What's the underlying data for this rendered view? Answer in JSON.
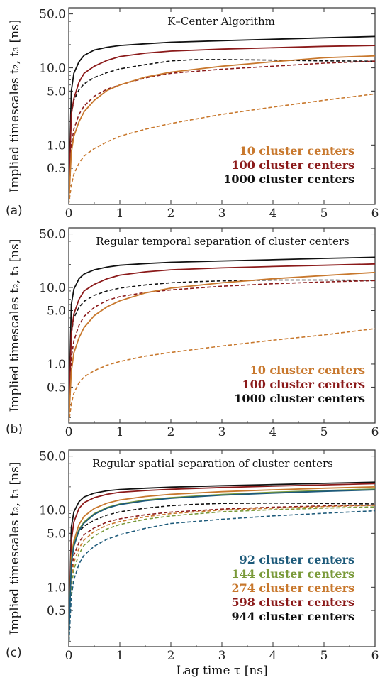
{
  "chart_data": [
    {
      "type": "line",
      "panel_letter": "(a)",
      "title": "K–Center Algorithm",
      "ylabel": "Implied timescales t₂, t₃ [ns]",
      "xlabel": "",
      "xlim": [
        0,
        6
      ],
      "ylim": [
        0.17,
        60
      ],
      "yscale": "log",
      "xticks": [
        0,
        1,
        2,
        3,
        4,
        5,
        6
      ],
      "yticks": [
        {
          "v": 50,
          "label": "50.0"
        },
        {
          "v": 10,
          "label": "10.0"
        },
        {
          "v": 5,
          "label": "5.0"
        },
        {
          "v": 1,
          "label": "1.0"
        },
        {
          "v": 0.5,
          "label": "0.5"
        }
      ],
      "legend_position": "bottom-right",
      "legend": [
        {
          "label": "10 cluster centers",
          "color": "#c8782d"
        },
        {
          "label": "100 cluster centers",
          "color": "#8b1a1a"
        },
        {
          "label": "1000 cluster centers",
          "color": "#111111"
        }
      ],
      "series": [
        {
          "color": "#111111",
          "style": "solid",
          "x": [
            0,
            0.05,
            0.1,
            0.2,
            0.3,
            0.5,
            0.75,
            1,
            1.5,
            2,
            3,
            4,
            5,
            6
          ],
          "y": [
            0.2,
            5,
            8.5,
            12,
            14.5,
            17,
            18.5,
            19.5,
            20.5,
            21.5,
            22.5,
            23.5,
            24.5,
            25.5
          ]
        },
        {
          "color": "#111111",
          "style": "dashed",
          "x": [
            0,
            0.05,
            0.1,
            0.2,
            0.3,
            0.5,
            0.75,
            1,
            1.5,
            2,
            2.5,
            3,
            4,
            5,
            6
          ],
          "y": [
            0.2,
            2.5,
            3.8,
            5.2,
            6.2,
            7.5,
            8.7,
            9.7,
            11,
            12.3,
            12.8,
            12.8,
            12.6,
            12.3,
            12.2
          ]
        },
        {
          "color": "#8b1a1a",
          "style": "solid",
          "x": [
            0,
            0.05,
            0.1,
            0.2,
            0.3,
            0.5,
            0.75,
            1,
            1.5,
            2,
            3,
            4,
            5,
            6
          ],
          "y": [
            0.2,
            2.5,
            4,
            6.5,
            8.5,
            10.5,
            12.5,
            14,
            15.5,
            16.5,
            17.5,
            18.2,
            19,
            19.5
          ]
        },
        {
          "color": "#8b1a1a",
          "style": "dashed",
          "x": [
            0,
            0.05,
            0.1,
            0.2,
            0.3,
            0.5,
            0.75,
            1,
            1.5,
            2,
            3,
            4,
            5,
            6
          ],
          "y": [
            0.17,
            1,
            1.6,
            2.5,
            3.2,
            4.3,
            5.3,
            6,
            7.4,
            8.5,
            9.6,
            10.5,
            11.5,
            12.2
          ]
        },
        {
          "color": "#c8782d",
          "style": "solid",
          "x": [
            0,
            0.05,
            0.1,
            0.2,
            0.3,
            0.5,
            0.75,
            1,
            1.5,
            2,
            3,
            4,
            5,
            6
          ],
          "y": [
            0.17,
            0.8,
            1.3,
            2,
            2.7,
            3.8,
            5.1,
            6,
            7.6,
            8.8,
            10.5,
            12,
            13.5,
            14.3
          ]
        },
        {
          "color": "#c8782d",
          "style": "dashed",
          "x": [
            0,
            0.05,
            0.1,
            0.2,
            0.3,
            0.5,
            0.75,
            1,
            1.5,
            2,
            3,
            4,
            5,
            6
          ],
          "y": [
            0.17,
            0.3,
            0.42,
            0.58,
            0.72,
            0.9,
            1.1,
            1.3,
            1.6,
            1.9,
            2.5,
            3.1,
            3.8,
            4.6
          ]
        }
      ]
    },
    {
      "type": "line",
      "panel_letter": "(b)",
      "title": "Regular temporal separation of cluster centers",
      "ylabel": "Implied timescales t₂, t₃ [ns]",
      "xlabel": "",
      "xlim": [
        0,
        6
      ],
      "ylim": [
        0.17,
        60
      ],
      "yscale": "log",
      "xticks": [
        0,
        1,
        2,
        3,
        4,
        5,
        6
      ],
      "yticks": [
        {
          "v": 50,
          "label": "50.0"
        },
        {
          "v": 10,
          "label": "10.0"
        },
        {
          "v": 5,
          "label": "5.0"
        },
        {
          "v": 1,
          "label": "1.0"
        },
        {
          "v": 0.5,
          "label": "0.5"
        }
      ],
      "legend_position": "bottom-right",
      "legend": [
        {
          "label": "10 cluster centers",
          "color": "#c8782d"
        },
        {
          "label": "100 cluster centers",
          "color": "#8b1a1a"
        },
        {
          "label": "1000 cluster centers",
          "color": "#111111"
        }
      ],
      "series": [
        {
          "color": "#111111",
          "style": "solid",
          "x": [
            0,
            0.05,
            0.1,
            0.2,
            0.3,
            0.5,
            0.75,
            1,
            1.5,
            2,
            3,
            4,
            5,
            6
          ],
          "y": [
            0.2,
            6,
            9.5,
            13,
            15,
            17,
            18.5,
            19.5,
            20.5,
            21.3,
            22.2,
            23,
            24,
            24.8
          ]
        },
        {
          "color": "#111111",
          "style": "dashed",
          "x": [
            0,
            0.05,
            0.1,
            0.2,
            0.3,
            0.5,
            0.75,
            1,
            1.5,
            2,
            2.5,
            3,
            4,
            5,
            6
          ],
          "y": [
            0.2,
            2.5,
            4,
            5.5,
            6.6,
            7.9,
            9,
            9.8,
            10.8,
            11.5,
            11.9,
            12.2,
            12.5,
            12.5,
            12.4
          ]
        },
        {
          "color": "#8b1a1a",
          "style": "solid",
          "x": [
            0,
            0.05,
            0.1,
            0.2,
            0.3,
            0.5,
            0.75,
            1,
            1.5,
            2,
            3,
            4,
            5,
            6
          ],
          "y": [
            0.2,
            2.5,
            4.5,
            7,
            9,
            11,
            13,
            14.5,
            16,
            17,
            18,
            18.8,
            19.5,
            20.3
          ]
        },
        {
          "color": "#8b1a1a",
          "style": "dashed",
          "x": [
            0,
            0.05,
            0.1,
            0.2,
            0.3,
            0.5,
            0.75,
            1,
            1.5,
            2,
            3,
            4,
            5,
            6
          ],
          "y": [
            0.17,
            1.2,
            2,
            3.2,
            4.2,
            5.5,
            6.8,
            7.6,
            8.6,
            9.3,
            10.4,
            11.2,
            11.8,
            12.3
          ]
        },
        {
          "color": "#c8782d",
          "style": "solid",
          "x": [
            0,
            0.05,
            0.1,
            0.2,
            0.3,
            0.5,
            0.75,
            1,
            1.5,
            2,
            3,
            4,
            5,
            6
          ],
          "y": [
            0.17,
            0.8,
            1.4,
            2.2,
            3,
            4.3,
            5.6,
            6.7,
            8.5,
            9.8,
            11.5,
            13,
            14.3,
            15.7
          ]
        },
        {
          "color": "#c8782d",
          "style": "dashed",
          "x": [
            0,
            0.05,
            0.1,
            0.2,
            0.3,
            0.5,
            0.75,
            1,
            1.5,
            2,
            3,
            4,
            5,
            6
          ],
          "y": [
            0.17,
            0.3,
            0.42,
            0.57,
            0.68,
            0.82,
            0.97,
            1.08,
            1.27,
            1.42,
            1.72,
            2.05,
            2.4,
            2.9
          ]
        }
      ]
    },
    {
      "type": "line",
      "panel_letter": "(c)",
      "title": "Regular spatial separation of cluster centers",
      "ylabel": "Implied timescales t₂, t₃ [ns]",
      "xlabel": "Lag time τ [ns]",
      "xlim": [
        0,
        6
      ],
      "ylim": [
        0.17,
        60
      ],
      "yscale": "log",
      "xticks": [
        0,
        1,
        2,
        3,
        4,
        5,
        6
      ],
      "yticks": [
        {
          "v": 50,
          "label": "50.0"
        },
        {
          "v": 10,
          "label": "10.0"
        },
        {
          "v": 5,
          "label": "5.0"
        },
        {
          "v": 1,
          "label": "1.0"
        },
        {
          "v": 0.5,
          "label": "0.5"
        }
      ],
      "legend_position": "bottom-right",
      "legend": [
        {
          "label": "92 cluster centers",
          "color": "#1d5a7a"
        },
        {
          "label": "144 cluster centers",
          "color": "#7a9a3a"
        },
        {
          "label": "274 cluster centers",
          "color": "#c8782d"
        },
        {
          "label": "598 cluster centers",
          "color": "#8b1a1a"
        },
        {
          "label": "944 cluster centers",
          "color": "#111111"
        }
      ],
      "series": [
        {
          "color": "#111111",
          "style": "solid",
          "x": [
            0,
            0.05,
            0.1,
            0.2,
            0.3,
            0.5,
            0.75,
            1,
            1.5,
            2,
            3,
            4,
            5,
            6
          ],
          "y": [
            0.2,
            6,
            9.5,
            12.8,
            14.8,
            16.6,
            17.8,
            18.5,
            19.2,
            19.8,
            20.7,
            21.4,
            22.2,
            23
          ]
        },
        {
          "color": "#111111",
          "style": "dashed",
          "x": [
            0,
            0.05,
            0.1,
            0.2,
            0.3,
            0.5,
            0.75,
            1,
            1.5,
            2,
            2.5,
            3,
            4,
            5,
            6
          ],
          "y": [
            0.2,
            2.5,
            3.8,
            5.2,
            6.2,
            7.4,
            8.6,
            9.5,
            10.6,
            11.4,
            11.9,
            12.2,
            12.3,
            12.2,
            12
          ]
        },
        {
          "color": "#8b1a1a",
          "style": "solid",
          "x": [
            0,
            0.05,
            0.1,
            0.2,
            0.3,
            0.5,
            0.75,
            1,
            1.5,
            2,
            3,
            4,
            5,
            6
          ],
          "y": [
            0.2,
            4,
            7,
            10.5,
            12.5,
            14.5,
            16,
            17,
            17.9,
            18.6,
            19.6,
            20.4,
            21.2,
            22
          ]
        },
        {
          "color": "#8b1a1a",
          "style": "dashed",
          "x": [
            0,
            0.05,
            0.1,
            0.2,
            0.3,
            0.5,
            0.75,
            1,
            1.5,
            2,
            3,
            4,
            5,
            6
          ],
          "y": [
            0.17,
            1.6,
            2.6,
            3.8,
            4.8,
            5.9,
            7,
            7.7,
            8.7,
            9.4,
            10.3,
            10.9,
            11.3,
            11.6
          ]
        },
        {
          "color": "#c8782d",
          "style": "solid",
          "x": [
            0,
            0.05,
            0.1,
            0.2,
            0.3,
            0.5,
            0.75,
            1,
            1.5,
            2,
            3,
            4,
            5,
            6
          ],
          "y": [
            0.2,
            2.5,
            4,
            6.5,
            8.3,
            10.5,
            12.3,
            13.5,
            15,
            16,
            17.3,
            18.3,
            19.2,
            20
          ]
        },
        {
          "color": "#c8782d",
          "style": "dashed",
          "x": [
            0,
            0.05,
            0.1,
            0.2,
            0.3,
            0.5,
            0.75,
            1,
            1.5,
            2,
            3,
            4,
            5,
            6
          ],
          "y": [
            0.17,
            1.3,
            2.1,
            3.2,
            4.1,
            5.3,
            6.4,
            7.1,
            8.2,
            9,
            10,
            10.6,
            11.1,
            11.5
          ]
        },
        {
          "color": "#7a9a3a",
          "style": "solid",
          "x": [
            0,
            0.05,
            0.1,
            0.2,
            0.3,
            0.5,
            0.75,
            1,
            1.5,
            2,
            3,
            4,
            5,
            6
          ],
          "y": [
            0.2,
            2.2,
            3.6,
            5.6,
            7,
            9,
            10.8,
            12,
            13.5,
            14.5,
            15.9,
            17,
            17.9,
            18.7
          ]
        },
        {
          "color": "#7a9a3a",
          "style": "dashed",
          "x": [
            0,
            0.05,
            0.1,
            0.2,
            0.3,
            0.5,
            0.75,
            1,
            1.5,
            2,
            3,
            4,
            5,
            6
          ],
          "y": [
            0.17,
            1,
            1.7,
            2.7,
            3.5,
            4.6,
            5.7,
            6.5,
            7.6,
            8.4,
            9.5,
            10.1,
            10.6,
            11
          ]
        },
        {
          "color": "#1d5a7a",
          "style": "solid",
          "x": [
            0,
            0.05,
            0.1,
            0.2,
            0.3,
            0.5,
            0.75,
            1,
            1.5,
            2,
            3,
            4,
            5,
            6
          ],
          "y": [
            0.2,
            2,
            3.4,
            5.4,
            6.8,
            8.8,
            10.6,
            11.8,
            13.2,
            14.2,
            15.6,
            16.6,
            17.5,
            18.3
          ]
        },
        {
          "color": "#1d5a7a",
          "style": "dashed",
          "x": [
            0,
            0.05,
            0.1,
            0.2,
            0.3,
            0.5,
            0.75,
            1,
            1.5,
            2,
            3,
            4,
            5,
            6
          ],
          "y": [
            0.17,
            0.75,
            1.25,
            2,
            2.6,
            3.4,
            4.2,
            4.8,
            5.8,
            6.7,
            7.6,
            8.4,
            9.1,
            9.8
          ]
        }
      ]
    }
  ]
}
